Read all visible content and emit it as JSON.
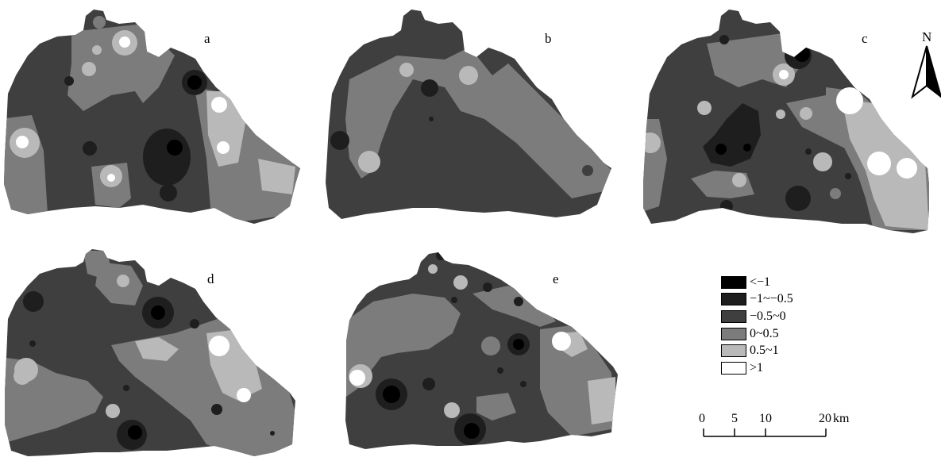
{
  "panels": [
    {
      "label": "a"
    },
    {
      "label": "b"
    },
    {
      "label": "c"
    },
    {
      "label": "d"
    },
    {
      "label": "e"
    }
  ],
  "legend": {
    "items": [
      {
        "label": "<−1",
        "color": "#000000"
      },
      {
        "label": "−1~−0.5",
        "color": "#1e1e1e"
      },
      {
        "label": "−0.5~0",
        "color": "#3f3f3f"
      },
      {
        "label": "0~0.5",
        "color": "#7c7c7c"
      },
      {
        "label": "0.5~1",
        "color": "#b9b9b9"
      },
      {
        "label": ">1",
        "color": "#ffffff"
      }
    ]
  },
  "scale_bar": {
    "ticks": [
      "0",
      "5",
      "10",
      "20"
    ],
    "unit": "km"
  },
  "north_arrow": {
    "letter": "N",
    "icon": "north-arrow-icon"
  }
}
